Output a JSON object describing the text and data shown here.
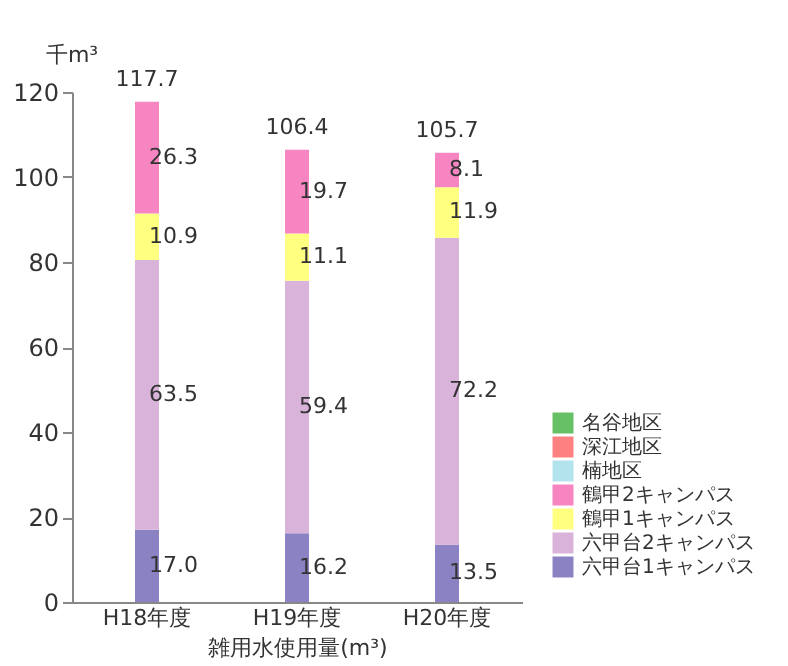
{
  "chart_data": {
    "type": "bar",
    "stacked": true,
    "ylabel": "千m³",
    "xlabel": "雑用水使用量(m³)",
    "categories": [
      "H18年度",
      "H19年度",
      "H20年度"
    ],
    "series": [
      {
        "name": "六甲台1キャンパス",
        "color": "#8a82c2",
        "values": [
          17.0,
          16.2,
          13.5
        ],
        "value_labels": [
          "17.0",
          "16.2",
          "13.5"
        ]
      },
      {
        "name": "六甲台2キャンパス",
        "color": "#d9b3d9",
        "values": [
          63.5,
          59.4,
          72.2
        ],
        "value_labels": [
          "63.5",
          "59.4",
          "72.2"
        ]
      },
      {
        "name": "鶴甲1キャンパス",
        "color": "#ffff80",
        "values": [
          10.9,
          11.1,
          11.9
        ],
        "value_labels": [
          "10.9",
          "11.1",
          "11.9"
        ]
      },
      {
        "name": "鶴甲2キャンパス",
        "color": "#f785c2",
        "values": [
          26.3,
          19.7,
          8.1
        ],
        "value_labels": [
          "26.3",
          "19.7",
          "8.1"
        ]
      },
      {
        "name": "楠地区",
        "color": "#b3e3ec",
        "values": [
          null,
          null,
          null
        ]
      },
      {
        "name": "深江地区",
        "color": "#ff8080",
        "values": [
          null,
          null,
          null
        ]
      },
      {
        "name": "名谷地区",
        "color": "#66c066",
        "values": [
          null,
          null,
          null
        ]
      }
    ],
    "totals": [
      "117.7",
      "106.4",
      "105.7"
    ],
    "ylim": [
      0,
      120
    ],
    "yticks": [
      0,
      20,
      40,
      60,
      80,
      100,
      120
    ],
    "grid": false,
    "legend": "bottom right"
  }
}
